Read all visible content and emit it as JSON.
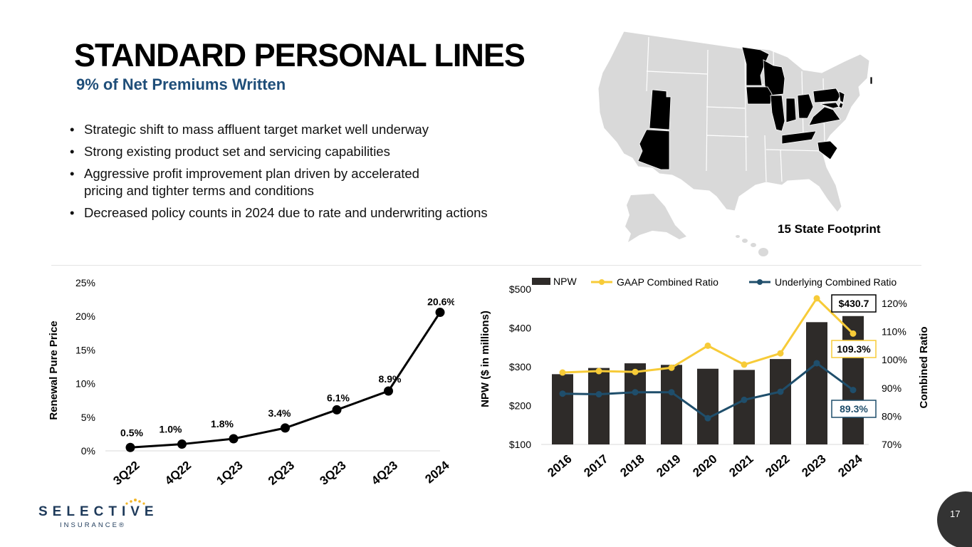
{
  "header": {
    "title": "STANDARD PERSONAL LINES",
    "subtitle": "9% of Net Premiums Written"
  },
  "bullets": [
    "Strategic shift to mass affluent target market well underway",
    "Strong existing product set and servicing capabilities",
    "Aggressive profit improvement plan driven by accelerated pricing and tighter terms and conditions",
    "Decreased policy counts in 2024 due to rate and underwriting actions"
  ],
  "map": {
    "caption": "15 State Footprint"
  },
  "logo": {
    "name": "SELECTIVE",
    "sub": "INSURANCE®"
  },
  "page_number": "17",
  "colors": {
    "title": "#000000",
    "subtitle": "#1f4e79",
    "bar": "#2e2b29",
    "gaap": "#f7cb38",
    "underlying": "#1f4e6b",
    "line": "#000000",
    "state_default": "#d9d9d9",
    "state_footprint": "#000000"
  },
  "chart_data": [
    {
      "type": "line",
      "ylabel": "Renewal Pure Price",
      "categories": [
        "3Q22",
        "4Q22",
        "1Q23",
        "2Q23",
        "3Q23",
        "4Q23",
        "2024"
      ],
      "values": [
        0.5,
        1.0,
        1.8,
        3.4,
        6.1,
        8.9,
        20.6
      ],
      "data_labels": [
        "0.5%",
        "1.0%",
        "1.8%",
        "3.4%",
        "6.1%",
        "8.9%",
        "20.6%"
      ],
      "ylim": [
        0,
        25
      ],
      "yticks": [
        "0%",
        "5%",
        "10%",
        "15%",
        "20%",
        "25%"
      ],
      "grid": false,
      "legend": "none"
    },
    {
      "type": "bar",
      "ylabel": "NPW ($ in millions)",
      "y2label": "Combined Ratio",
      "categories": [
        "2016",
        "2017",
        "2018",
        "2019",
        "2020",
        "2021",
        "2022",
        "2023",
        "2024"
      ],
      "ylim": [
        100,
        500
      ],
      "yticks": [
        "$100",
        "$200",
        "$300",
        "$400",
        "$500"
      ],
      "y2lim": [
        70,
        125
      ],
      "y2ticks": [
        "70%",
        "80%",
        "90%",
        "100%",
        "110%",
        "120%"
      ],
      "legend": "top",
      "series": [
        {
          "name": "NPW",
          "type": "bar",
          "axis": "left",
          "values": [
            281,
            297,
            309,
            305,
            295,
            292,
            320,
            415,
            430.7
          ]
        },
        {
          "name": "GAAP Combined Ratio",
          "type": "line",
          "axis": "right",
          "values": [
            95.5,
            96.0,
            95.7,
            97.2,
            105.0,
            98.3,
            102.3,
            121.8,
            109.3
          ]
        },
        {
          "name": "Underlying Combined Ratio",
          "type": "line",
          "axis": "right",
          "values": [
            88.0,
            87.8,
            88.5,
            88.5,
            79.3,
            85.8,
            88.7,
            98.8,
            89.3
          ]
        }
      ],
      "callouts": {
        "npw_2024": "$430.7",
        "gaap_2024": "109.3%",
        "underlying_2024": "89.3%"
      }
    }
  ]
}
